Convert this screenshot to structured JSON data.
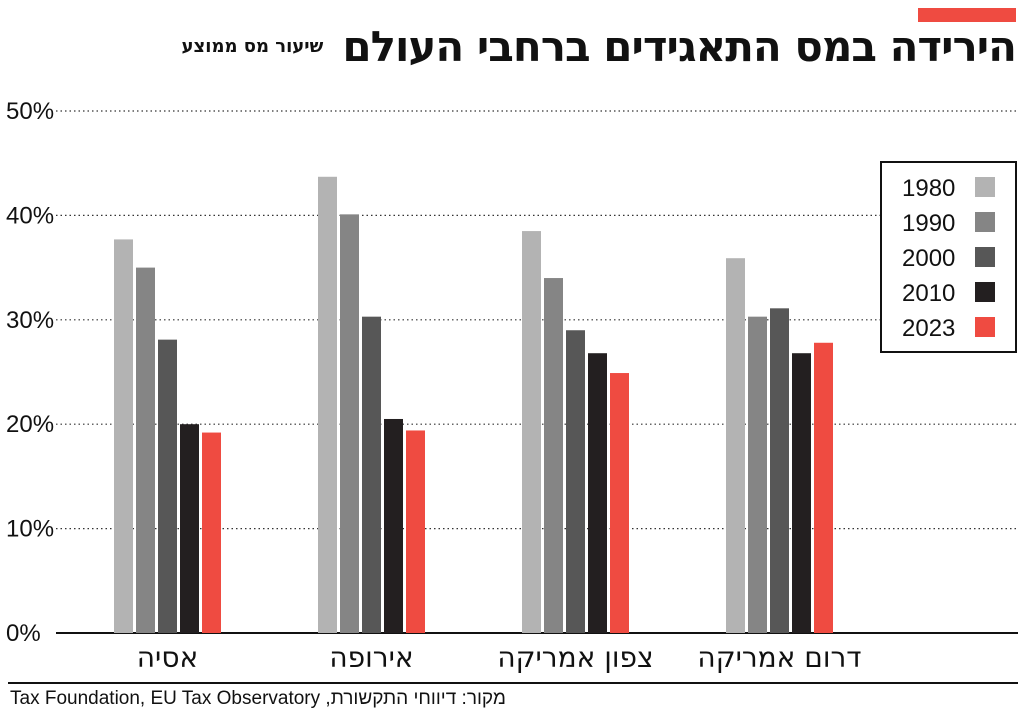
{
  "title": "הירידה במס התאגידים ברחבי העולם",
  "subtitle": "שיעור מס ממוצע",
  "source": "מקור: דיווחי התקשורת, Tax Foundation, EU Tax Observatory",
  "colors": {
    "accent": "#ef4b41",
    "s1980": "#b3b3b3",
    "s1990": "#858585",
    "s2000": "#575757",
    "s2010": "#231f20",
    "s2023": "#ef4b41"
  },
  "chart_data": {
    "type": "bar",
    "categories": [
      "אסיה",
      "אירופה",
      "צפון אמריקה",
      "דרום אמריקה"
    ],
    "series": [
      {
        "name": "1980",
        "values": [
          37.7,
          43.7,
          38.5,
          35.9
        ]
      },
      {
        "name": "1990",
        "values": [
          35.0,
          40.1,
          34.0,
          30.3
        ]
      },
      {
        "name": "2000",
        "values": [
          28.1,
          30.3,
          29.0,
          31.1
        ]
      },
      {
        "name": "2010",
        "values": [
          20.0,
          20.5,
          26.8,
          26.8
        ]
      },
      {
        "name": "2023",
        "values": [
          19.2,
          19.4,
          24.9,
          27.8
        ]
      }
    ],
    "ylim": [
      0,
      50
    ],
    "yticks": [
      "0%",
      "10%",
      "20%",
      "30%",
      "40%",
      "50%"
    ],
    "legend_position": "top-right",
    "grid": "horizontal dotted"
  }
}
